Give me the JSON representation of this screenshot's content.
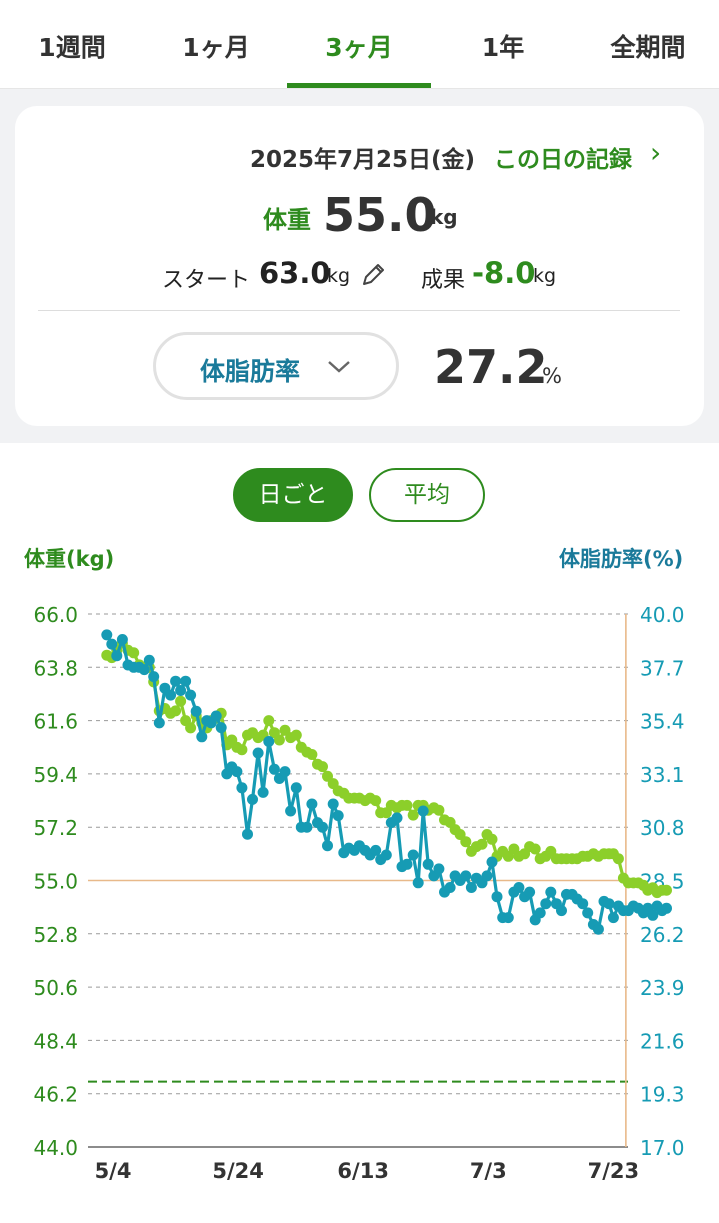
{
  "tabs": [
    {
      "label": "1週間",
      "active": false
    },
    {
      "label": "1ヶ月",
      "active": false
    },
    {
      "label": "3ヶ月",
      "active": true
    },
    {
      "label": "1年",
      "active": false
    },
    {
      "label": "全期間",
      "active": false
    }
  ],
  "summary": {
    "date": "2025年7月25日(金)",
    "record_link": "この日の記録",
    "weight_label": "体重",
    "weight_value": "55.0",
    "weight_unit": "kg",
    "start_label": "スタート",
    "start_value": "63.0",
    "start_unit": "kg",
    "result_label": "成果",
    "result_value": "-8.0",
    "result_unit": "kg",
    "metric_select": "体脂肪率",
    "metric_value": "27.2",
    "metric_unit": "%"
  },
  "toggles": {
    "daily": "日ごと",
    "average": "平均",
    "selected": "daily"
  },
  "colors": {
    "weight": "#8ccf2a",
    "body_fat": "#169bb4",
    "accent": "#2e8b1e",
    "target": "#2e8b1e",
    "cursor": "#e8b98a"
  },
  "chart_data": {
    "type": "line",
    "left_axis_label": "体重(kg)",
    "right_axis_label": "体脂肪率(%)",
    "left_ticks": [
      "66.0",
      "63.8",
      "61.6",
      "59.4",
      "57.2",
      "55.0",
      "52.8",
      "50.6",
      "48.4",
      "46.2",
      "44.0"
    ],
    "right_ticks": [
      "40.0",
      "37.7",
      "35.4",
      "33.1",
      "30.8",
      "28.5",
      "26.2",
      "23.9",
      "21.6",
      "19.3",
      "17.0"
    ],
    "x_ticks": [
      "5/4",
      "5/24",
      "6/13",
      "7/3",
      "7/23"
    ],
    "x_tick_days": [
      0,
      20,
      40,
      60,
      80
    ],
    "x_range_days": [
      -4,
      82.5
    ],
    "ylim_left": [
      44.0,
      66.0
    ],
    "ylim_right": [
      17.0,
      40.0
    ],
    "target_weight": 46.7,
    "selected_day": 82,
    "selected_weight": 55.0,
    "grid": true,
    "series": [
      {
        "name": "体重",
        "axis": "left",
        "values": [
          [
            -1,
            64.3
          ],
          [
            -0.2,
            64.2
          ],
          [
            0.6,
            64.5
          ],
          [
            1.5,
            64.8
          ],
          [
            2.4,
            64.5
          ],
          [
            3.3,
            64.4
          ],
          [
            4.2,
            63.9
          ],
          [
            5,
            63.8
          ],
          [
            5.8,
            63.8
          ],
          [
            6.5,
            63.2
          ],
          [
            7.4,
            62.0
          ],
          [
            8.3,
            62.1
          ],
          [
            9.2,
            61.9
          ],
          [
            10,
            62.0
          ],
          [
            10.8,
            62.4
          ],
          [
            11.6,
            61.6
          ],
          [
            12.4,
            61.3
          ],
          [
            13.3,
            61.8
          ],
          [
            14.2,
            61.5
          ],
          [
            15,
            61.3
          ],
          [
            15.7,
            61.6
          ],
          [
            16.5,
            61.7
          ],
          [
            17.3,
            61.9
          ],
          [
            18.2,
            60.6
          ],
          [
            19,
            60.8
          ],
          [
            19.8,
            60.5
          ],
          [
            20.6,
            60.4
          ],
          [
            21.5,
            61.0
          ],
          [
            22.3,
            61.1
          ],
          [
            23.2,
            60.9
          ],
          [
            24,
            61.0
          ],
          [
            24.9,
            61.6
          ],
          [
            25.8,
            61.1
          ],
          [
            26.6,
            60.8
          ],
          [
            27.5,
            61.2
          ],
          [
            28.4,
            60.9
          ],
          [
            29.3,
            61.0
          ],
          [
            30.1,
            60.5
          ],
          [
            31,
            60.3
          ],
          [
            31.8,
            60.2
          ],
          [
            32.7,
            59.8
          ],
          [
            33.5,
            59.7
          ],
          [
            34.3,
            59.3
          ],
          [
            35.2,
            59.0
          ],
          [
            36,
            58.7
          ],
          [
            36.9,
            58.6
          ],
          [
            37.7,
            58.4
          ],
          [
            38.6,
            58.4
          ],
          [
            39.4,
            58.4
          ],
          [
            40.3,
            58.3
          ],
          [
            41.1,
            58.4
          ],
          [
            42,
            58.3
          ],
          [
            42.8,
            57.8
          ],
          [
            43.7,
            57.8
          ],
          [
            44.5,
            58.1
          ],
          [
            45.4,
            58.0
          ],
          [
            46.2,
            58.1
          ],
          [
            47,
            58.1
          ],
          [
            48,
            57.7
          ],
          [
            48.8,
            58.1
          ],
          [
            49.6,
            58.1
          ],
          [
            50.4,
            57.9
          ],
          [
            51.3,
            58.0
          ],
          [
            52.1,
            57.9
          ],
          [
            53,
            57.5
          ],
          [
            53.9,
            57.4
          ],
          [
            54.7,
            57.1
          ],
          [
            55.5,
            56.9
          ],
          [
            56.4,
            56.6
          ],
          [
            57.3,
            56.2
          ],
          [
            58.1,
            56.4
          ],
          [
            59,
            56.5
          ],
          [
            59.8,
            56.9
          ],
          [
            60.6,
            56.7
          ],
          [
            61.4,
            56.0
          ],
          [
            62.3,
            56.2
          ],
          [
            63.2,
            56.0
          ],
          [
            64.1,
            56.3
          ],
          [
            64.9,
            56.0
          ],
          [
            65.8,
            56.1
          ],
          [
            66.6,
            56.4
          ],
          [
            67.5,
            56.3
          ],
          [
            68.3,
            55.9
          ],
          [
            69.2,
            56.0
          ],
          [
            70,
            56.2
          ],
          [
            70.9,
            55.9
          ],
          [
            71.7,
            55.9
          ],
          [
            72.5,
            55.9
          ],
          [
            73.4,
            55.9
          ],
          [
            74.2,
            55.9
          ],
          [
            75.1,
            56.0
          ],
          [
            75.9,
            56.0
          ],
          [
            76.8,
            56.1
          ],
          [
            77.6,
            56.0
          ],
          [
            78.5,
            56.1
          ],
          [
            79.3,
            56.1
          ],
          [
            80,
            56.1
          ],
          [
            80.8,
            55.9
          ],
          [
            81.6,
            55.1
          ],
          [
            82.4,
            54.9
          ],
          [
            83.2,
            54.9
          ],
          [
            84,
            54.9
          ],
          [
            84.8,
            54.8
          ],
          [
            85.5,
            54.6
          ],
          [
            86.3,
            54.7
          ],
          [
            87,
            54.5
          ],
          [
            87.8,
            54.6
          ],
          [
            88.5,
            54.6
          ]
        ]
      },
      {
        "name": "体脂肪率",
        "axis": "right",
        "values": [
          [
            -1,
            39.1
          ],
          [
            -0.2,
            38.7
          ],
          [
            0.6,
            38.2
          ],
          [
            1.5,
            38.9
          ],
          [
            2.4,
            37.8
          ],
          [
            3.3,
            37.7
          ],
          [
            4.2,
            37.7
          ],
          [
            5,
            37.6
          ],
          [
            5.8,
            38.0
          ],
          [
            6.5,
            37.3
          ],
          [
            7.4,
            35.3
          ],
          [
            8.3,
            36.8
          ],
          [
            9.2,
            36.5
          ],
          [
            10,
            37.1
          ],
          [
            10.8,
            36.7
          ],
          [
            11.6,
            37.1
          ],
          [
            12.4,
            36.5
          ],
          [
            13.3,
            35.8
          ],
          [
            14.2,
            34.7
          ],
          [
            15,
            35.4
          ],
          [
            15.7,
            35.3
          ],
          [
            16.5,
            35.6
          ],
          [
            17.3,
            35.1
          ],
          [
            18.2,
            33.1
          ],
          [
            19,
            33.4
          ],
          [
            19.8,
            33.2
          ],
          [
            20.6,
            32.5
          ],
          [
            21.5,
            30.5
          ],
          [
            22.3,
            32.0
          ],
          [
            23.2,
            34.0
          ],
          [
            24,
            32.3
          ],
          [
            24.9,
            34.5
          ],
          [
            25.8,
            33.3
          ],
          [
            26.6,
            32.9
          ],
          [
            27.5,
            33.2
          ],
          [
            28.4,
            31.5
          ],
          [
            29.3,
            32.5
          ],
          [
            30.1,
            30.8
          ],
          [
            31,
            30.8
          ],
          [
            31.8,
            31.8
          ],
          [
            32.7,
            31.0
          ],
          [
            33.5,
            30.8
          ],
          [
            34.3,
            30.0
          ],
          [
            35.2,
            31.8
          ],
          [
            36,
            31.3
          ],
          [
            36.9,
            29.7
          ],
          [
            37.7,
            29.9
          ],
          [
            38.6,
            29.8
          ],
          [
            39.4,
            30.0
          ],
          [
            40.3,
            29.8
          ],
          [
            41.1,
            29.6
          ],
          [
            42,
            29.8
          ],
          [
            42.8,
            29.4
          ],
          [
            43.7,
            29.6
          ],
          [
            44.5,
            31.0
          ],
          [
            45.4,
            31.2
          ],
          [
            46.2,
            29.1
          ],
          [
            47,
            29.2
          ],
          [
            48,
            29.6
          ],
          [
            48.8,
            28.4
          ],
          [
            49.6,
            31.5
          ],
          [
            50.4,
            29.2
          ],
          [
            51.3,
            28.7
          ],
          [
            52.1,
            29.0
          ],
          [
            53,
            28.0
          ],
          [
            53.9,
            28.2
          ],
          [
            54.7,
            28.7
          ],
          [
            55.5,
            28.5
          ],
          [
            56.4,
            28.7
          ],
          [
            57.3,
            28.2
          ],
          [
            58.1,
            28.6
          ],
          [
            59,
            28.4
          ],
          [
            59.8,
            28.7
          ],
          [
            60.6,
            29.3
          ],
          [
            61.4,
            27.8
          ],
          [
            62.3,
            26.9
          ],
          [
            63.2,
            26.9
          ],
          [
            64.1,
            28.0
          ],
          [
            64.9,
            28.2
          ],
          [
            65.8,
            27.8
          ],
          [
            66.6,
            28.0
          ],
          [
            67.5,
            26.8
          ],
          [
            68.3,
            27.1
          ],
          [
            69.2,
            27.5
          ],
          [
            70,
            28.0
          ],
          [
            70.9,
            27.5
          ],
          [
            71.7,
            27.2
          ],
          [
            72.5,
            27.9
          ],
          [
            73.4,
            27.9
          ],
          [
            74.2,
            27.7
          ],
          [
            75.1,
            27.5
          ],
          [
            75.9,
            27.1
          ],
          [
            76.8,
            26.6
          ],
          [
            77.6,
            26.4
          ],
          [
            78.5,
            27.6
          ],
          [
            79.3,
            27.5
          ],
          [
            80,
            26.9
          ],
          [
            80.8,
            27.4
          ],
          [
            81.6,
            27.2
          ],
          [
            82.4,
            27.2
          ],
          [
            83.2,
            27.4
          ],
          [
            84,
            27.3
          ],
          [
            84.8,
            27.1
          ],
          [
            85.5,
            27.3
          ],
          [
            86.3,
            27.0
          ],
          [
            87,
            27.4
          ],
          [
            87.8,
            27.2
          ],
          [
            88.5,
            27.3
          ]
        ]
      }
    ]
  }
}
